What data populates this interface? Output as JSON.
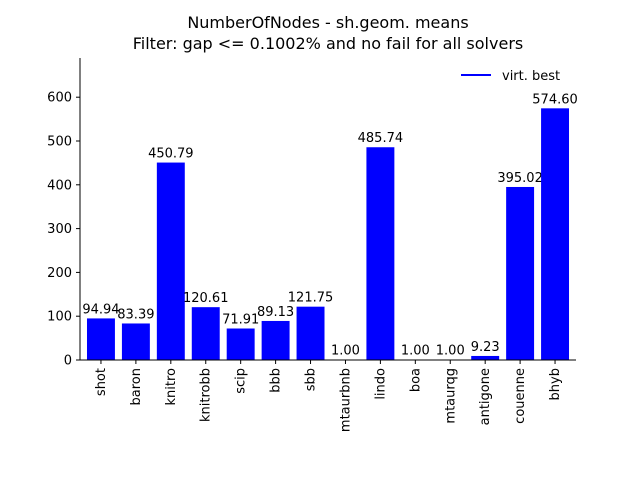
{
  "chart_data": {
    "type": "bar",
    "title_lines": [
      "NumberOfNodes - sh.geom. means",
      "Filter: gap <= 0.1002% and no fail for all solvers"
    ],
    "xlabel": "",
    "ylabel": "",
    "categories": [
      "shot",
      "baron",
      "knitro",
      "knitrobb",
      "scip",
      "bbb",
      "sbb",
      "mtaurbnb",
      "lindo",
      "boa",
      "mtaurqg",
      "antigone",
      "couenne",
      "bhyb"
    ],
    "series": [
      {
        "name": "virt. best",
        "color": "#0000ff",
        "values": [
          94.94,
          83.39,
          450.79,
          120.61,
          71.91,
          89.13,
          121.75,
          1.0,
          485.74,
          1.0,
          1.0,
          9.23,
          395.02,
          574.6
        ],
        "labels": [
          "94.94",
          "83.39",
          "450.79",
          "120.61",
          "71.91",
          "89.13",
          "121.75",
          "1.00",
          "485.74",
          "1.00",
          "1.00",
          "9.23",
          "395.02",
          "574.60"
        ]
      }
    ],
    "ylim": [
      0,
      689.5
    ],
    "yticks": [
      0,
      100,
      200,
      300,
      400,
      500,
      600
    ],
    "grid": false,
    "legend_position": "top-right"
  }
}
